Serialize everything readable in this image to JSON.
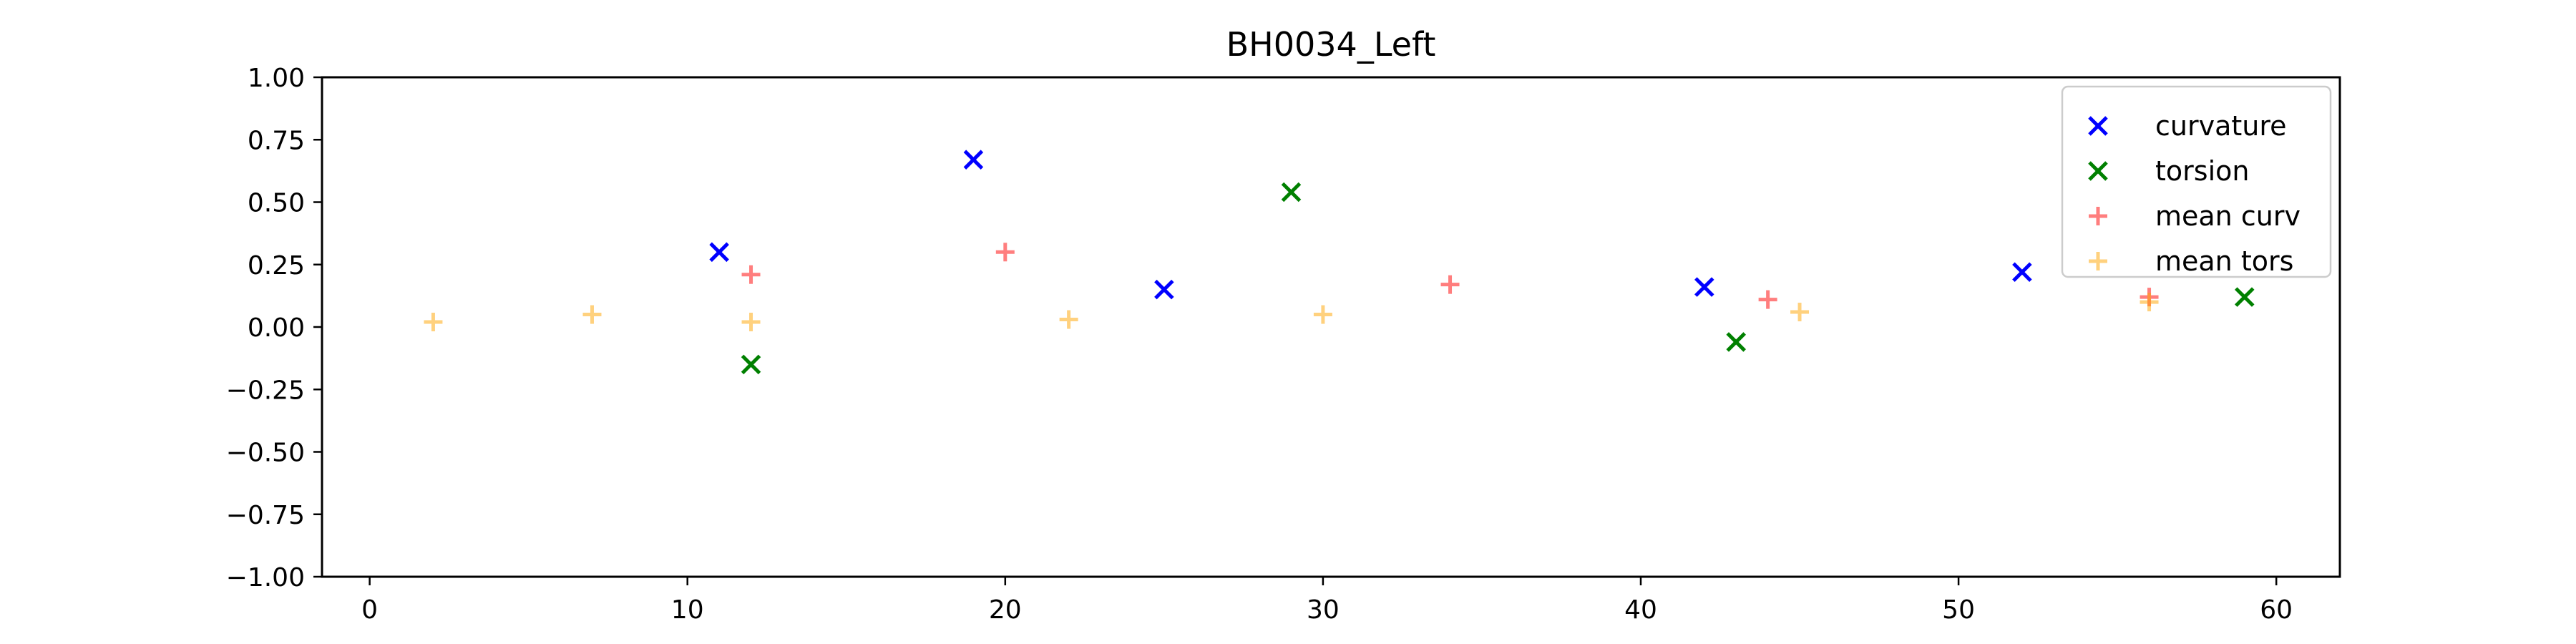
{
  "chart_data": {
    "type": "scatter",
    "title": "BH0034_Left",
    "xlabel": "",
    "ylabel": "",
    "xlim": [
      -1.5,
      62
    ],
    "ylim": [
      -1.0,
      1.0
    ],
    "x_ticks": [
      0,
      10,
      20,
      30,
      40,
      50,
      60
    ],
    "y_ticks": [
      -1.0,
      -0.75,
      -0.5,
      -0.25,
      0.0,
      0.25,
      0.5,
      0.75,
      1.0
    ],
    "x_tick_labels": [
      "0",
      "10",
      "20",
      "30",
      "40",
      "50",
      "60"
    ],
    "y_tick_labels": [
      "−1.00",
      "−0.75",
      "−0.50",
      "−0.25",
      "0.00",
      "0.25",
      "0.50",
      "0.75",
      "1.00"
    ],
    "grid": false,
    "legend_position": "top-right",
    "series": [
      {
        "name": "curvature",
        "marker": "x",
        "color": "#0000ff",
        "opacity": 1.0,
        "points": [
          [
            11,
            0.3
          ],
          [
            19,
            0.67
          ],
          [
            25,
            0.15
          ],
          [
            42,
            0.16
          ],
          [
            52,
            0.22
          ]
        ]
      },
      {
        "name": "torsion",
        "marker": "x",
        "color": "#008000",
        "opacity": 1.0,
        "points": [
          [
            12,
            -0.15
          ],
          [
            29,
            0.54
          ],
          [
            43,
            -0.06
          ],
          [
            59,
            0.12
          ]
        ]
      },
      {
        "name": "mean curv",
        "marker": "+",
        "color": "#ff0000",
        "opacity": 0.5,
        "points": [
          [
            12,
            0.21
          ],
          [
            20,
            0.3
          ],
          [
            34,
            0.17
          ],
          [
            44,
            0.11
          ],
          [
            56,
            0.12
          ]
        ]
      },
      {
        "name": "mean tors",
        "marker": "+",
        "color": "#ffa500",
        "opacity": 0.5,
        "points": [
          [
            2,
            0.02
          ],
          [
            7,
            0.05
          ],
          [
            12,
            0.02
          ],
          [
            22,
            0.03
          ],
          [
            30,
            0.05
          ],
          [
            45,
            0.06
          ],
          [
            56,
            0.1
          ]
        ]
      }
    ]
  }
}
